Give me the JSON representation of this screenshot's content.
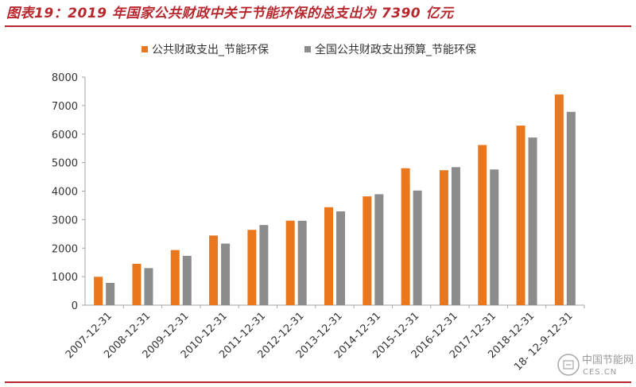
{
  "header": {
    "title": "图表19：2019 年国家公共财政中关于节能环保的总支出为 7390 亿元"
  },
  "watermark": {
    "line1": "中国节能网",
    "line2": "CES.CN",
    "icon": "ces-logo-icon"
  },
  "colors": {
    "title": "#b7282e",
    "series1": "#e8771e",
    "series2": "#8c8c8c",
    "axis": "#a6a6a6"
  },
  "chart_data": {
    "type": "bar",
    "title": "",
    "xlabel": "",
    "ylabel": "",
    "ylim": [
      0,
      8000
    ],
    "yticks": [
      0,
      1000,
      2000,
      3000,
      4000,
      5000,
      6000,
      7000,
      8000
    ],
    "grid": false,
    "legend_position": "top",
    "categories": [
      "2007-12-31",
      "2008-12-31",
      "2009-12-31",
      "2010-12-31",
      "2011-12-31",
      "2012-12-31",
      "2013-12-31",
      "2014-12-31",
      "2015-12-31",
      "2016-12-31",
      "2017-12-31",
      "2018-12-31",
      "18- 12-9-12-31"
    ],
    "series": [
      {
        "name": "公共财政支出_节能环保",
        "values": [
          995,
          1451,
          1934,
          2442,
          2641,
          2963,
          3435,
          3816,
          4803,
          4734,
          5617,
          6298,
          7390
        ]
      },
      {
        "name": "全国公共财政支出预算_节能环保",
        "values": [
          780,
          1300,
          1730,
          2160,
          2810,
          2960,
          3290,
          3890,
          4020,
          4840,
          4760,
          5880,
          6780
        ]
      }
    ]
  }
}
